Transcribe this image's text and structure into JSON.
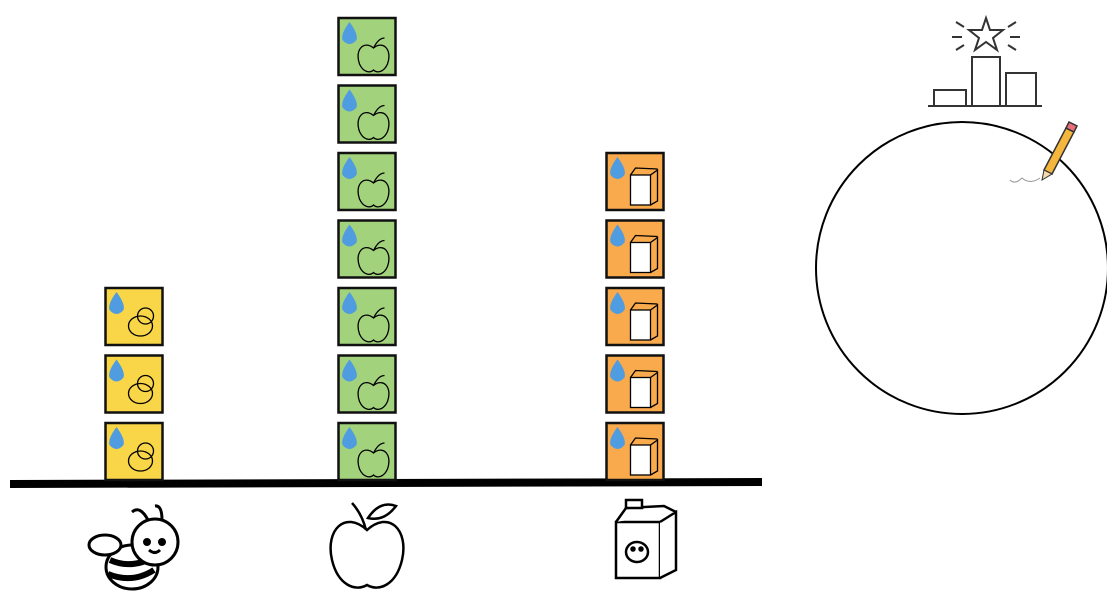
{
  "chart_data": {
    "type": "pictograph",
    "categories": [
      null,
      null,
      null
    ],
    "values": [
      3,
      7,
      5
    ],
    "colors": [
      "#f9d648",
      "#a2d27c",
      "#f9aa4c"
    ]
  }
}
